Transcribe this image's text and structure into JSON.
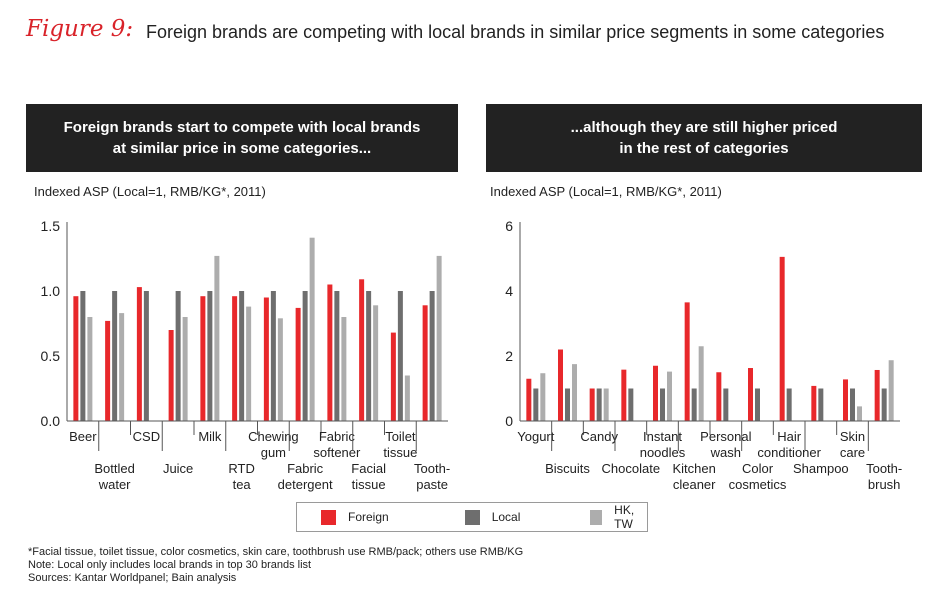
{
  "figure": {
    "label": "Figure 9:",
    "title": "Foreign brands are competing with local brands in similar price segments in some categories"
  },
  "colors": {
    "foreign": "#e8282b",
    "local": "#6e6e6e",
    "hktw": "#adadad"
  },
  "legend": {
    "items": [
      "Foreign",
      "Local",
      "HK, TW"
    ]
  },
  "chart_data": [
    {
      "type": "bar",
      "title": "Foreign brands start to compete with local brands at similar price in some categories...",
      "title_lines": [
        "Foreign brands start to compete with local brands",
        "at similar price in some categories..."
      ],
      "ylabel": "Indexed ASP (Local=1, RMB/KG*, 2011)",
      "xlabel": "",
      "ylim": [
        0,
        1.5
      ],
      "yticks": [
        "0.0",
        "0.5",
        "1.0",
        "1.5"
      ],
      "ytick_values": [
        0,
        0.5,
        1.0,
        1.5
      ],
      "categories": [
        "Beer",
        "Bottled water",
        "CSD",
        "Juice",
        "Milk",
        "RTD tea",
        "Chewing gum",
        "Fabric detergent",
        "Fabric softener",
        "Facial tissue",
        "Toilet tissue",
        "Tooth-paste"
      ],
      "category_label_lines": [
        [
          "Beer"
        ],
        [
          "Bottled",
          "water"
        ],
        [
          "CSD"
        ],
        [
          "Juice"
        ],
        [
          "Milk"
        ],
        [
          "RTD",
          "tea"
        ],
        [
          "Chewing",
          "gum"
        ],
        [
          "Fabric",
          "detergent"
        ],
        [
          "Fabric",
          "softener"
        ],
        [
          "Facial",
          "tissue"
        ],
        [
          "Toilet",
          "tissue"
        ],
        [
          "Tooth-",
          "paste"
        ]
      ],
      "series": [
        {
          "name": "Foreign",
          "values": [
            0.96,
            0.77,
            1.03,
            0.7,
            0.96,
            0.96,
            0.95,
            0.87,
            1.05,
            1.09,
            0.68,
            0.89
          ]
        },
        {
          "name": "Local",
          "values": [
            1.0,
            1.0,
            1.0,
            1.0,
            1.0,
            1.0,
            1.0,
            1.0,
            1.0,
            1.0,
            1.0,
            1.0
          ]
        },
        {
          "name": "HK, TW",
          "values": [
            0.8,
            0.83,
            null,
            0.8,
            1.27,
            0.88,
            0.79,
            1.41,
            0.8,
            0.89,
            0.35,
            1.27
          ]
        }
      ]
    },
    {
      "type": "bar",
      "title": "...although they are still higher priced in the rest of categories",
      "title_lines": [
        "...although they are still higher priced",
        "in the rest of categories"
      ],
      "ylabel": "Indexed ASP (Local=1, RMB/KG*, 2011)",
      "xlabel": "",
      "ylim": [
        0,
        6
      ],
      "yticks": [
        "0",
        "2",
        "4",
        "6"
      ],
      "ytick_values": [
        0,
        2,
        4,
        6
      ],
      "categories": [
        "Yogurt",
        "Biscuits",
        "Candy",
        "Chocolate",
        "Instant noodles",
        "Kitchen cleaner",
        "Personal wash",
        "Color cosmetics",
        "Hair conditioner",
        "Shampoo",
        "Skin care",
        "Tooth-brush"
      ],
      "category_label_lines": [
        [
          "Yogurt"
        ],
        [
          "Biscuits"
        ],
        [
          "Candy"
        ],
        [
          "Chocolate"
        ],
        [
          "Instant",
          "noodles"
        ],
        [
          "Kitchen",
          "cleaner"
        ],
        [
          "Personal",
          "wash"
        ],
        [
          "Color",
          "cosmetics"
        ],
        [
          "Hair",
          "conditioner"
        ],
        [
          "Shampoo"
        ],
        [
          "Skin",
          "care"
        ],
        [
          "Tooth-",
          "brush"
        ]
      ],
      "series": [
        {
          "name": "Foreign",
          "values": [
            1.3,
            2.2,
            1.0,
            1.58,
            1.7,
            3.65,
            1.5,
            1.63,
            5.05,
            1.08,
            1.28,
            1.57
          ]
        },
        {
          "name": "Local",
          "values": [
            1.0,
            1.0,
            1.0,
            1.0,
            1.0,
            1.0,
            1.0,
            1.0,
            1.0,
            1.0,
            1.0,
            1.0
          ]
        },
        {
          "name": "HK, TW",
          "values": [
            1.47,
            1.75,
            1.0,
            null,
            1.52,
            2.3,
            null,
            null,
            null,
            null,
            0.45,
            1.87
          ]
        }
      ]
    }
  ],
  "notes": [
    "*Facial tissue, toilet tissue, color cosmetics, skin care, toothbrush use RMB/pack; others use RMB/KG",
    "Note: Local only includes local brands in top 30 brands list",
    "Sources: Kantar Worldpanel; Bain analysis"
  ]
}
